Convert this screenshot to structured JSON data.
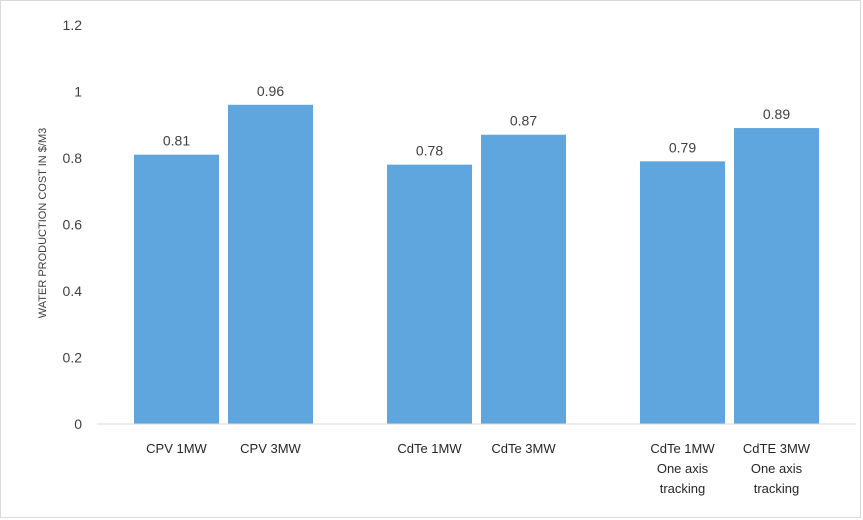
{
  "chart_data": {
    "type": "bar",
    "title": "",
    "xlabel": "",
    "ylabel": "WATER PRODUCTION COST IN $/M3",
    "ylim": [
      0,
      1.2
    ],
    "yticks": [
      "0",
      "0.2",
      "0.4",
      "0.6",
      "0.8",
      "1",
      "1.2"
    ],
    "grid": false,
    "legend": "none",
    "bar_color": "#5ea6dd",
    "groups": [
      {
        "bars": [
          {
            "label": [
              "CPV 1MW"
            ],
            "value": 0.81,
            "value_label": "0.81"
          },
          {
            "label": [
              "CPV 3MW"
            ],
            "value": 0.96,
            "value_label": "0.96"
          }
        ]
      },
      {
        "bars": [
          {
            "label": [
              "CdTe 1MW"
            ],
            "value": 0.78,
            "value_label": "0.78"
          },
          {
            "label": [
              "CdTe 3MW"
            ],
            "value": 0.87,
            "value_label": "0.87"
          }
        ]
      },
      {
        "bars": [
          {
            "label": [
              "CdTe 1MW",
              "One axis",
              "tracking"
            ],
            "value": 0.79,
            "value_label": "0.79"
          },
          {
            "label": [
              "CdTE 3MW",
              "One axis",
              "tracking"
            ],
            "value": 0.89,
            "value_label": "0.89"
          }
        ]
      }
    ]
  }
}
